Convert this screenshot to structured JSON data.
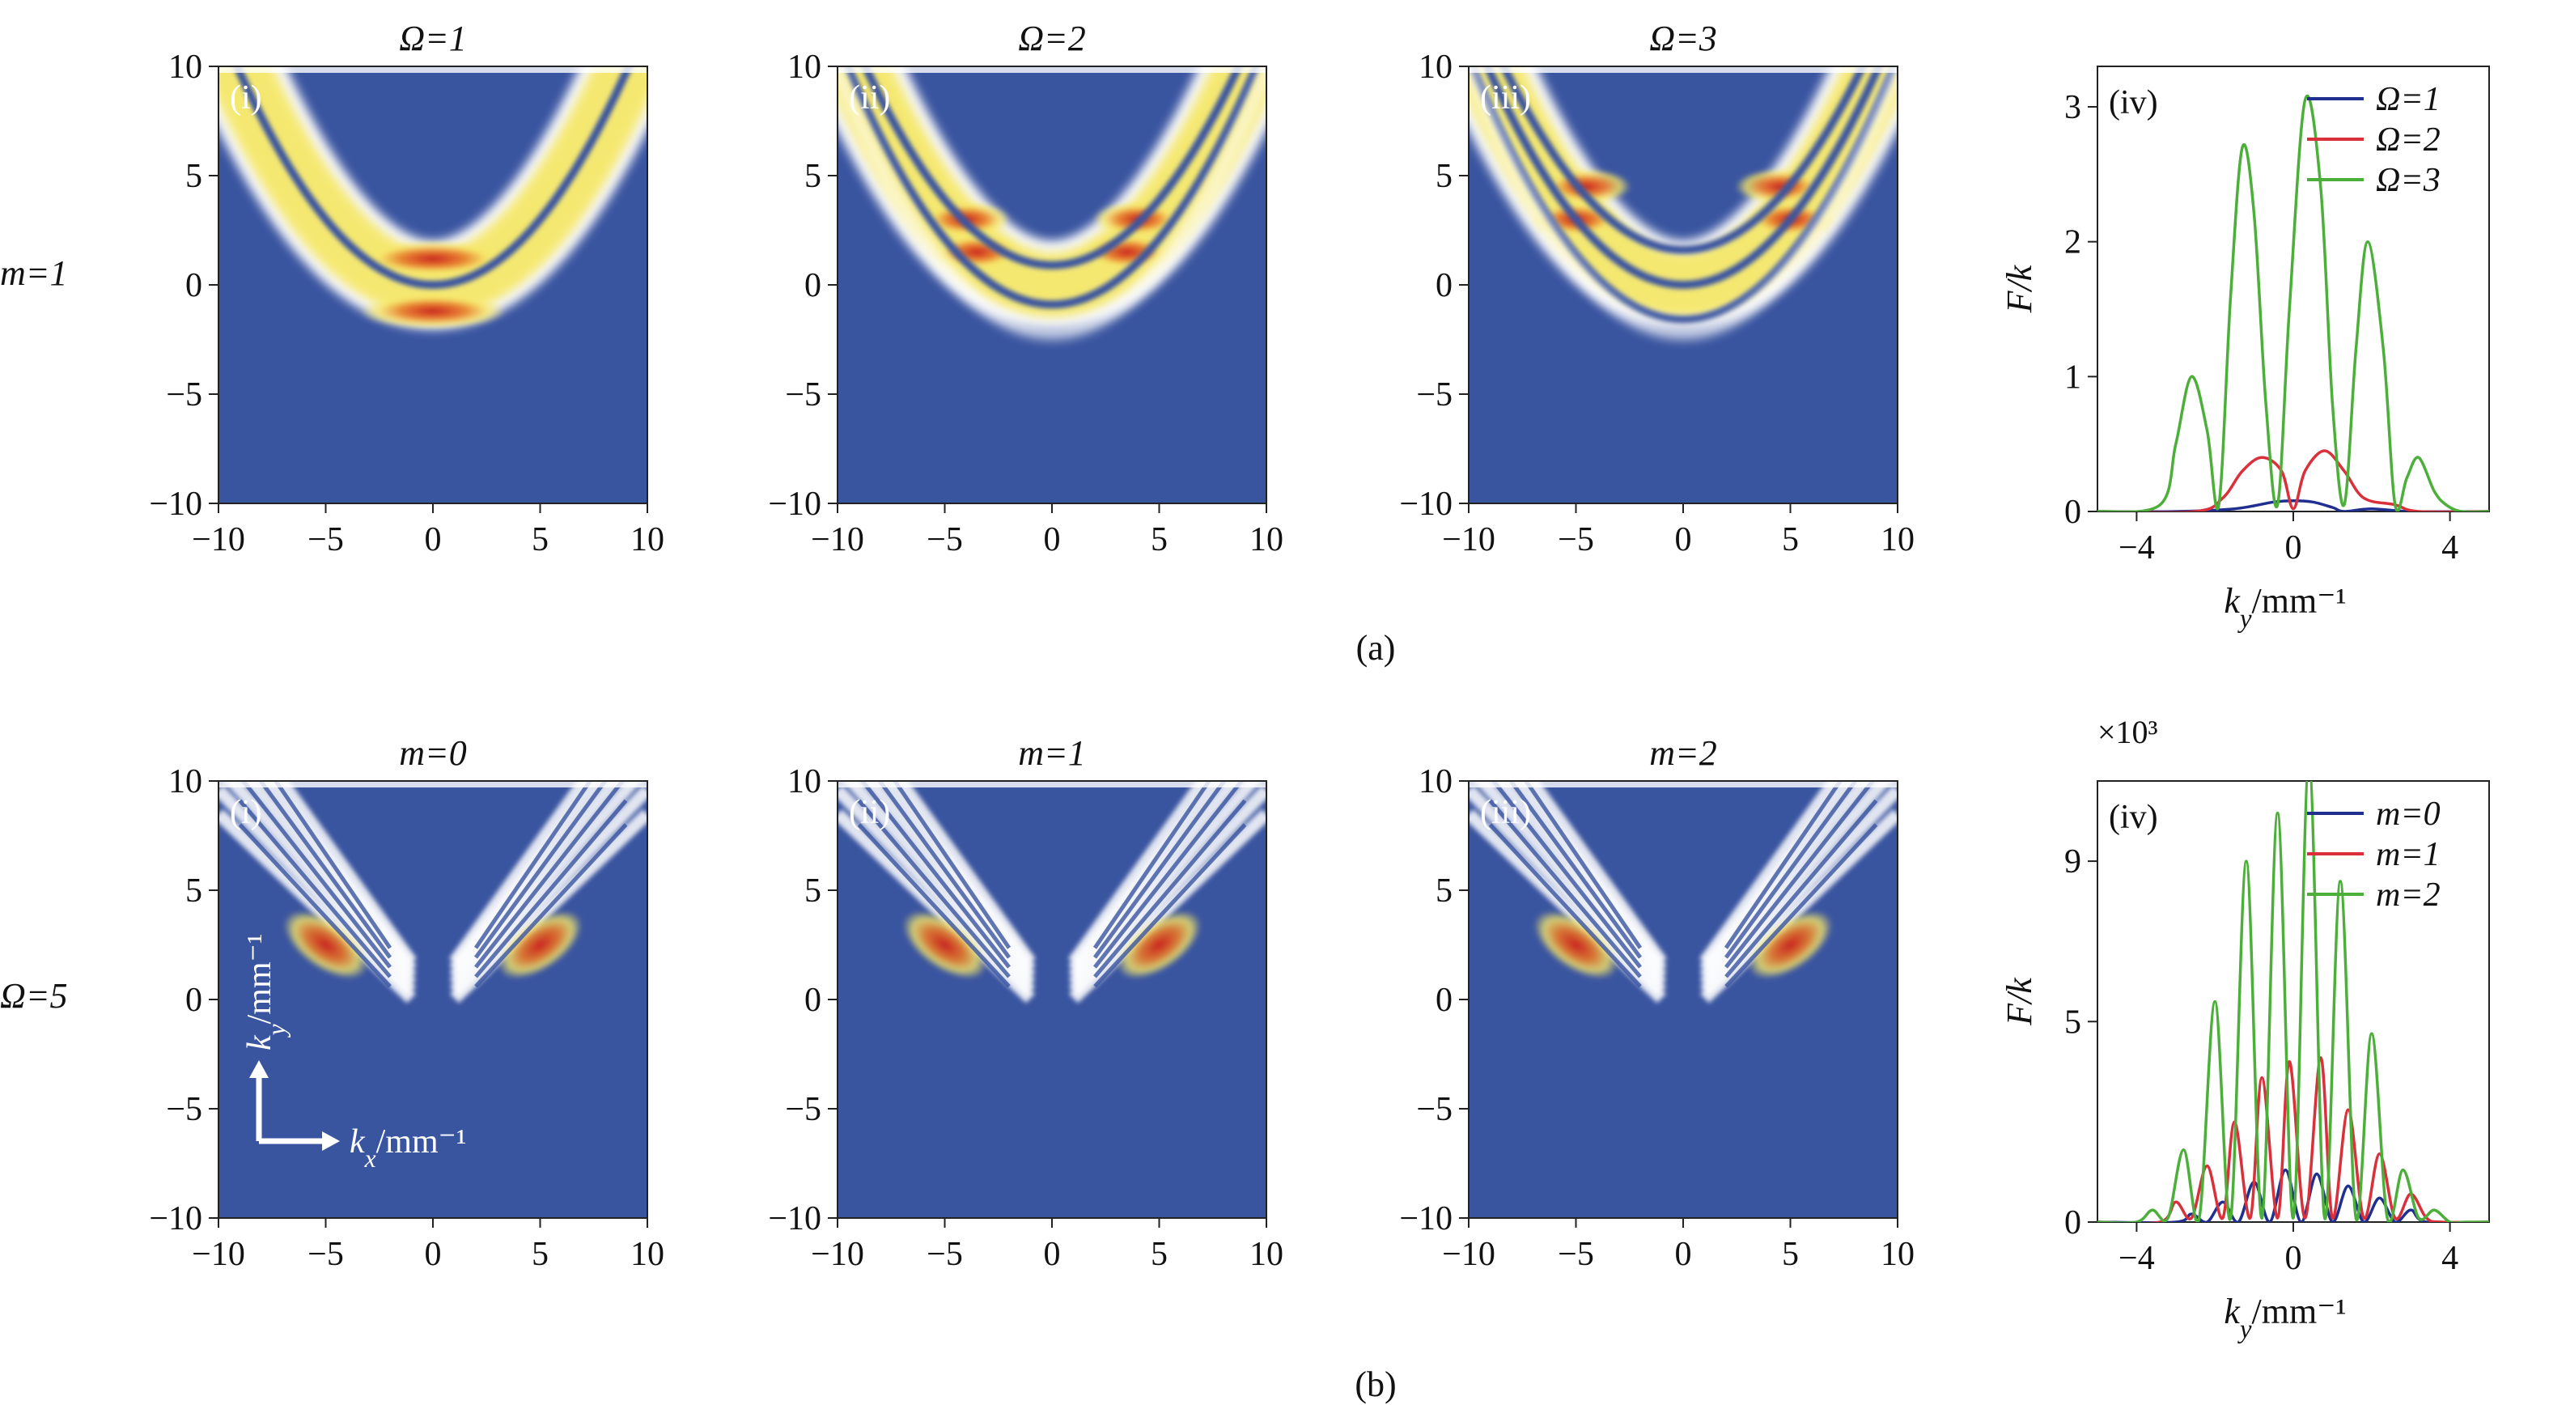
{
  "figure": {
    "row_a_label": "m=1",
    "row_b_label": "Ω=5",
    "caption_a": "(a)",
    "caption_b": "(b)",
    "multiplier_b": "×10³"
  },
  "colormap": {
    "low": "#3a55a0",
    "mid": "#ffffff",
    "high_1": "#f6e86a",
    "high_2": "#e87a2a",
    "peak": "#c8201e"
  },
  "chart_data": [
    {
      "type": "heatmap",
      "panel": "(i)",
      "title": "Ω=1",
      "xlim": [
        -10,
        10
      ],
      "ylim": [
        -10,
        10
      ],
      "xticks": [
        -10,
        -5,
        0,
        5,
        10
      ],
      "yticks": [
        -10,
        -5,
        0,
        5,
        10
      ],
      "pattern": "single parabolic band, vertex near ky≈0, kx≈0; intensity peaks near kx≈0"
    },
    {
      "type": "heatmap",
      "panel": "(ii)",
      "title": "Ω=2",
      "xlim": [
        -10,
        10
      ],
      "ylim": [
        -10,
        10
      ],
      "xticks": [
        -10,
        -5,
        0,
        5,
        10
      ],
      "yticks": [
        -10,
        -5,
        0,
        5,
        10
      ],
      "pattern": "two-lobe parabolic band; intensity peaks near kx≈±4"
    },
    {
      "type": "heatmap",
      "panel": "(iii)",
      "title": "Ω=3",
      "xlim": [
        -10,
        10
      ],
      "ylim": [
        -10,
        10
      ],
      "xticks": [
        -10,
        -5,
        0,
        5,
        10
      ],
      "yticks": [
        -10,
        -5,
        0,
        5,
        10
      ],
      "pattern": "three-fringe parabolic band; intensity peaks near kx≈±5"
    },
    {
      "type": "line",
      "panel": "(iv)",
      "xlabel": "k_y/mm⁻¹",
      "ylabel": "F/k",
      "xlim": [
        -5,
        5
      ],
      "ylim": [
        0,
        3.3
      ],
      "xticks": [
        -4,
        0,
        4
      ],
      "yticks": [
        0,
        1,
        2,
        3
      ],
      "legend": "top-right",
      "series": [
        {
          "name": "Ω=1",
          "color": "#1f2f8f",
          "x": [
            -5,
            -3,
            -1.5,
            -0.5,
            0,
            0.5,
            1.0,
            1.3,
            2,
            3,
            5
          ],
          "y": [
            0,
            0,
            0.02,
            0.07,
            0.08,
            0.07,
            0.03,
            0,
            0.02,
            0,
            0
          ]
        },
        {
          "name": "Ω=2",
          "color": "#d9303a",
          "x": [
            -5,
            -2.5,
            -1.8,
            -1.3,
            -0.8,
            -0.3,
            0,
            0.3,
            0.8,
            1.3,
            1.8,
            2.6,
            3.2,
            5
          ],
          "y": [
            0,
            0,
            0.1,
            0.3,
            0.4,
            0.3,
            0.02,
            0.3,
            0.45,
            0.3,
            0.1,
            0.05,
            0,
            0
          ]
        },
        {
          "name": "Ω=3",
          "color": "#4caf3a",
          "x": [
            -5,
            -3.4,
            -3.0,
            -2.6,
            -2.2,
            -1.9,
            -1.6,
            -1.3,
            -1.0,
            -0.7,
            -0.4,
            -0.1,
            0.3,
            0.7,
            1.0,
            1.3,
            1.6,
            1.9,
            2.3,
            2.6,
            2.9,
            3.2,
            3.6,
            3.9,
            4.3,
            5
          ],
          "y": [
            0,
            0.05,
            0.5,
            1.0,
            0.6,
            0.05,
            1.6,
            2.7,
            2.2,
            0.8,
            0.05,
            1.5,
            3.05,
            2.4,
            0.8,
            0.05,
            1.2,
            2.0,
            1.2,
            0.05,
            0.25,
            0.4,
            0.15,
            0.05,
            0,
            0
          ]
        }
      ]
    },
    {
      "type": "heatmap",
      "panel": "(i)",
      "title": "m=0",
      "xlim": [
        -10,
        10
      ],
      "ylim": [
        -10,
        10
      ],
      "xticks": [
        -10,
        -5,
        0,
        5,
        10
      ],
      "yticks": [
        -10,
        -5,
        0,
        5,
        10
      ],
      "xlabel": "k_x/mm⁻¹",
      "ylabel": "k_y/mm⁻¹",
      "pattern": "V-shaped fringe bands with peaks near kx≈±5, ky≈2.5"
    },
    {
      "type": "heatmap",
      "panel": "(ii)",
      "title": "m=1",
      "xlim": [
        -10,
        10
      ],
      "ylim": [
        -10,
        10
      ],
      "xticks": [
        -10,
        -5,
        0,
        5,
        10
      ],
      "yticks": [
        -10,
        -5,
        0,
        5,
        10
      ],
      "pattern": "V-shaped fringe bands with peaks near kx≈±5, ky≈2.5"
    },
    {
      "type": "heatmap",
      "panel": "(iii)",
      "title": "m=2",
      "xlim": [
        -10,
        10
      ],
      "ylim": [
        -10,
        10
      ],
      "xticks": [
        -10,
        -5,
        0,
        5,
        10
      ],
      "yticks": [
        -10,
        -5,
        0,
        5,
        10
      ],
      "pattern": "V-shaped fringe bands with peaks near kx≈±5, ky≈2.5"
    },
    {
      "type": "line",
      "panel": "(iv)",
      "xlabel": "k_y/mm⁻¹",
      "ylabel": "F/k",
      "xlim": [
        -5,
        5
      ],
      "ylim": [
        0,
        11
      ],
      "xticks": [
        -4,
        0,
        4
      ],
      "yticks": [
        0,
        5,
        9
      ],
      "legend": "top-right",
      "series": [
        {
          "name": "m=0",
          "color": "#1f2f8f",
          "x": [
            -5,
            -3.0,
            -2.6,
            -2.2,
            -1.8,
            -1.4,
            -1.0,
            -0.6,
            -0.2,
            0.2,
            0.6,
            1.0,
            1.4,
            1.8,
            2.2,
            2.6,
            3.0,
            3.4,
            5
          ],
          "y": [
            0,
            0,
            0.2,
            0,
            0.5,
            0,
            1.0,
            0,
            1.3,
            0,
            1.2,
            0,
            0.9,
            0,
            0.6,
            0,
            0.3,
            0,
            0
          ]
        },
        {
          "name": "m=1",
          "color": "#d9303a",
          "x": [
            -5,
            -3.4,
            -3.0,
            -2.6,
            -2.2,
            -1.8,
            -1.5,
            -1.1,
            -0.8,
            -0.4,
            -0.1,
            0.3,
            0.7,
            1.0,
            1.4,
            1.8,
            2.2,
            2.6,
            3.0,
            3.4,
            3.8,
            5
          ],
          "y": [
            0,
            0,
            0.5,
            0.1,
            1.4,
            0.1,
            2.5,
            0.1,
            3.6,
            0.1,
            4.0,
            0.1,
            4.1,
            0.1,
            2.8,
            0.1,
            1.7,
            0.1,
            0.7,
            0.1,
            0,
            0
          ]
        },
        {
          "name": "m=2",
          "color": "#4caf3a",
          "x": [
            -5,
            -4.0,
            -3.6,
            -3.2,
            -2.8,
            -2.4,
            -2.0,
            -1.6,
            -1.2,
            -0.8,
            -0.4,
            0,
            0.4,
            0.8,
            1.2,
            1.6,
            2.0,
            2.4,
            2.8,
            3.2,
            3.6,
            4.0,
            4.4,
            5
          ],
          "y": [
            0,
            0,
            0.3,
            0.1,
            1.8,
            0.1,
            5.5,
            0.1,
            9.0,
            0.1,
            10.2,
            0.1,
            11.5,
            0.1,
            8.5,
            0.1,
            4.7,
            0.1,
            1.3,
            0.1,
            0.3,
            0,
            0,
            0
          ]
        }
      ]
    }
  ]
}
